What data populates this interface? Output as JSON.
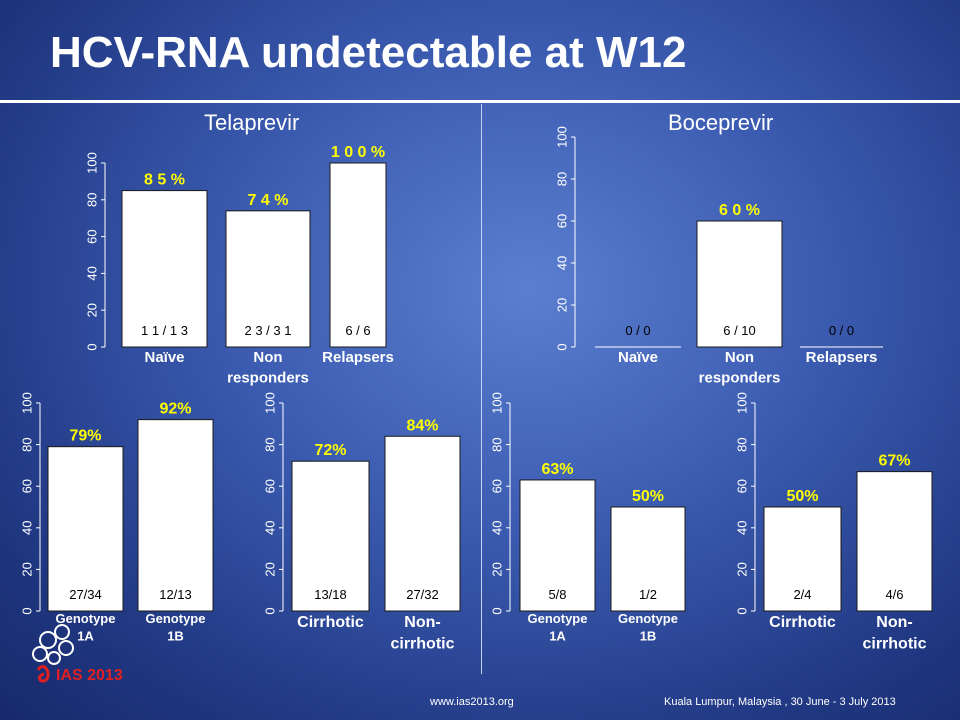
{
  "title": "HCV-RNA undetectable at W12",
  "drugs": {
    "left": "Telaprevir",
    "right": "Boceprevir"
  },
  "logo_text": "IAS 2013",
  "footer": {
    "url": "www.ias2013.org",
    "venue": "Kuala Lumpur, Malaysia , 30 June - 3 July 2013"
  },
  "colors": {
    "bar_fill": "#ffffff",
    "value_label": "#ffff00",
    "text": "#ffffff"
  },
  "chart_data": [
    {
      "id": "telaprevir-response",
      "type": "bar",
      "categories": [
        "Naïve",
        "Non\nresponders",
        "Relapsers"
      ],
      "values": [
        85,
        74,
        100
      ],
      "value_labels": [
        "8 5 %",
        "7 4 %",
        "1 0 0 %"
      ],
      "count_labels": [
        "1 1 / 1 3",
        "2 3 / 3 1",
        "6 / 6"
      ],
      "yticks": [
        0,
        20,
        40,
        60,
        80,
        100
      ],
      "ylim": [
        0,
        100
      ]
    },
    {
      "id": "boceprevir-response",
      "type": "bar",
      "categories": [
        "Naïve",
        "Non\nresponders",
        "Relapsers"
      ],
      "values": [
        0,
        60,
        0
      ],
      "value_labels": [
        "",
        "6 0 %",
        ""
      ],
      "count_labels": [
        "0 / 0",
        "6 / 10",
        "0 / 0"
      ],
      "yticks": [
        0,
        20,
        40,
        60,
        80,
        100
      ],
      "ylim": [
        0,
        100
      ]
    },
    {
      "id": "telaprevir-genotype",
      "type": "bar",
      "categories": [
        "Genotype\n1A",
        "Genotype\n1B"
      ],
      "values": [
        79,
        92
      ],
      "value_labels": [
        "79%",
        "92%"
      ],
      "count_labels": [
        "27/34",
        "12/13"
      ],
      "yticks": [
        0,
        20,
        40,
        60,
        80,
        100
      ],
      "ylim": [
        0,
        100
      ]
    },
    {
      "id": "telaprevir-cirrhosis",
      "type": "bar",
      "categories": [
        "Cirrhotic",
        "Non-\ncirrhotic"
      ],
      "values": [
        72,
        84
      ],
      "value_labels": [
        "72%",
        "84%"
      ],
      "count_labels": [
        "13/18",
        "27/32"
      ],
      "yticks": [
        0,
        20,
        40,
        60,
        80,
        100
      ],
      "ylim": [
        0,
        100
      ]
    },
    {
      "id": "boceprevir-genotype",
      "type": "bar",
      "categories": [
        "Genotype\n1A",
        "Genotype\n1B"
      ],
      "values": [
        63,
        50
      ],
      "value_labels": [
        "63%",
        "50%"
      ],
      "count_labels": [
        "5/8",
        "1/2"
      ],
      "yticks": [
        0,
        20,
        40,
        60,
        80,
        100
      ],
      "ylim": [
        0,
        100
      ]
    },
    {
      "id": "boceprevir-cirrhosis",
      "type": "bar",
      "categories": [
        "Cirrhotic",
        "Non-\ncirrhotic"
      ],
      "values": [
        50,
        67
      ],
      "value_labels": [
        "50%",
        "67%"
      ],
      "count_labels": [
        "2/4",
        "4/6"
      ],
      "yticks": [
        0,
        20,
        40,
        60,
        80,
        100
      ],
      "ylim": [
        0,
        100
      ]
    }
  ]
}
